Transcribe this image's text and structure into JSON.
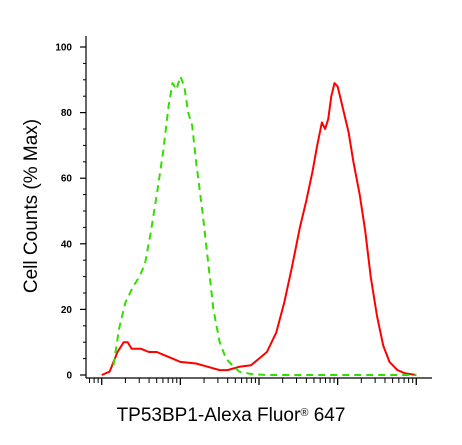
{
  "chart_data": {
    "type": "line",
    "title": "",
    "xlabel_main": "TP53BP1-Alexa Fluor",
    "xlabel_reg": "®",
    "xlabel_tail": " 647",
    "ylabel": "Cell Counts (% Max)",
    "xscale": "log",
    "xlim": [
      -0.2,
      4.2
    ],
    "ylim": [
      0,
      100
    ],
    "yticks": [
      "0",
      "20",
      "40",
      "60",
      "80",
      "100"
    ],
    "grid": false,
    "series": [
      {
        "color": "#ff0000",
        "style": "solid",
        "points": [
          [
            0.0,
            0
          ],
          [
            0.1,
            1
          ],
          [
            0.2,
            7
          ],
          [
            0.28,
            10
          ],
          [
            0.33,
            10
          ],
          [
            0.38,
            8
          ],
          [
            0.5,
            8
          ],
          [
            0.6,
            7
          ],
          [
            0.7,
            7
          ],
          [
            0.8,
            6
          ],
          [
            0.9,
            5
          ],
          [
            1.0,
            4
          ],
          [
            1.2,
            3.5
          ],
          [
            1.35,
            2.5
          ],
          [
            1.5,
            1.5
          ],
          [
            1.6,
            1.5
          ],
          [
            1.75,
            2.5
          ],
          [
            1.9,
            3
          ],
          [
            2.0,
            5
          ],
          [
            2.1,
            7
          ],
          [
            2.22,
            13
          ],
          [
            2.32,
            22
          ],
          [
            2.42,
            33
          ],
          [
            2.52,
            45
          ],
          [
            2.6,
            53
          ],
          [
            2.68,
            62
          ],
          [
            2.74,
            70
          ],
          [
            2.8,
            77
          ],
          [
            2.84,
            75
          ],
          [
            2.88,
            78
          ],
          [
            2.92,
            85
          ],
          [
            2.96,
            89
          ],
          [
            3.0,
            88
          ],
          [
            3.04,
            84
          ],
          [
            3.08,
            80
          ],
          [
            3.14,
            74
          ],
          [
            3.2,
            65
          ],
          [
            3.28,
            55
          ],
          [
            3.35,
            44
          ],
          [
            3.42,
            30
          ],
          [
            3.5,
            18
          ],
          [
            3.58,
            9
          ],
          [
            3.66,
            4
          ],
          [
            3.76,
            1.5
          ],
          [
            3.86,
            0.5
          ],
          [
            4.0,
            0
          ]
        ]
      },
      {
        "color": "#33dd00",
        "style": "dashed",
        "points": [
          [
            0.15,
            3
          ],
          [
            0.22,
            14
          ],
          [
            0.3,
            22
          ],
          [
            0.4,
            27
          ],
          [
            0.48,
            30
          ],
          [
            0.55,
            34
          ],
          [
            0.62,
            43
          ],
          [
            0.7,
            55
          ],
          [
            0.78,
            68
          ],
          [
            0.85,
            82
          ],
          [
            0.9,
            89
          ],
          [
            0.95,
            87
          ],
          [
            1.0,
            91
          ],
          [
            1.05,
            88
          ],
          [
            1.1,
            80
          ],
          [
            1.15,
            76
          ],
          [
            1.2,
            65
          ],
          [
            1.28,
            50
          ],
          [
            1.35,
            35
          ],
          [
            1.42,
            20
          ],
          [
            1.5,
            10
          ],
          [
            1.58,
            5
          ],
          [
            1.66,
            3
          ],
          [
            1.75,
            1
          ],
          [
            1.9,
            0.3
          ],
          [
            2.1,
            0
          ],
          [
            2.5,
            0
          ],
          [
            3.0,
            0
          ],
          [
            3.5,
            0
          ],
          [
            4.0,
            0
          ]
        ]
      }
    ]
  }
}
